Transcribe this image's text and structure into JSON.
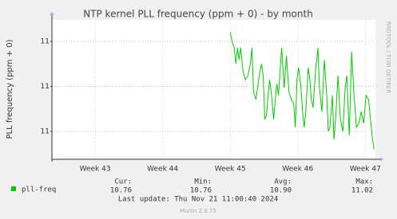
{
  "chart_data": {
    "type": "line",
    "title": "NTP kernel PLL frequency (ppm + 0) - by month",
    "y_label": "PLL frequency (ppm + 0)",
    "side_text": "RRDTOOL / TOBI OETIKER",
    "xlim": [
      42.36,
      47.15
    ],
    "xticks": [
      {
        "value": 43,
        "label": "Week 43"
      },
      {
        "value": 44,
        "label": "Week 44"
      },
      {
        "value": 45,
        "label": "Week 45"
      },
      {
        "value": 46,
        "label": "Week 46"
      },
      {
        "value": 47,
        "label": "Week 47"
      }
    ],
    "ylim": [
      10.738,
      11.048
    ],
    "yticks": [
      {
        "value": 10.8,
        "label": "11"
      },
      {
        "value": 10.9,
        "label": "11"
      },
      {
        "value": 11.0,
        "label": "11"
      }
    ],
    "grid": true,
    "x": [
      45.0,
      45.036,
      45.06,
      45.083,
      45.107,
      45.131,
      45.155,
      45.19,
      45.226,
      45.262,
      45.298,
      45.321,
      45.345,
      45.381,
      45.405,
      45.429,
      45.464,
      45.488,
      45.512,
      45.536,
      45.56,
      45.583,
      45.607,
      45.643,
      45.667,
      45.69,
      45.714,
      45.738,
      45.762,
      45.798,
      45.833,
      45.869,
      45.905,
      45.94,
      45.964,
      45.988,
      46.012,
      46.048,
      46.071,
      46.095,
      46.119,
      46.155,
      46.179,
      46.202,
      46.226,
      46.262,
      46.298,
      46.321,
      46.357,
      46.393,
      46.429,
      46.452,
      46.476,
      46.512,
      46.536,
      46.56,
      46.595,
      46.631,
      46.667,
      46.702,
      46.726,
      46.762,
      46.798,
      46.833,
      46.869,
      46.905,
      46.94,
      46.976,
      47.012,
      47.048,
      47.083,
      47.107,
      47.131
    ],
    "series": [
      {
        "name": "pll-freq",
        "color": "#00cc00",
        "values": [
          11.02,
          10.995,
          10.986,
          10.95,
          10.986,
          10.959,
          10.986,
          10.933,
          10.915,
          10.924,
          10.95,
          10.986,
          10.888,
          10.871,
          10.897,
          10.924,
          10.95,
          10.924,
          10.827,
          10.835,
          10.88,
          10.915,
          10.888,
          10.827,
          10.871,
          10.906,
          10.88,
          10.933,
          10.986,
          10.897,
          10.968,
          10.888,
          10.871,
          10.862,
          10.809,
          10.915,
          10.942,
          10.897,
          10.844,
          10.809,
          10.844,
          10.942,
          10.915,
          10.871,
          10.853,
          10.933,
          10.986,
          10.897,
          10.844,
          10.959,
          10.88,
          10.8,
          10.809,
          10.88,
          10.782,
          10.827,
          10.924,
          10.827,
          10.8,
          10.897,
          10.924,
          10.791,
          10.977,
          10.88,
          10.809,
          10.818,
          10.844,
          10.818,
          10.88,
          10.871,
          10.818,
          10.782,
          10.76
        ]
      }
    ],
    "stats": {
      "headers": [
        "Cur:",
        "Min:",
        "Avg:",
        "Max:"
      ],
      "values": [
        "10.76",
        "10.76",
        "10.90",
        "11.02"
      ]
    },
    "last_update": "Last update: Thu Nov 21 11:00:40 2024",
    "footer": "Munin 2.0.75"
  }
}
